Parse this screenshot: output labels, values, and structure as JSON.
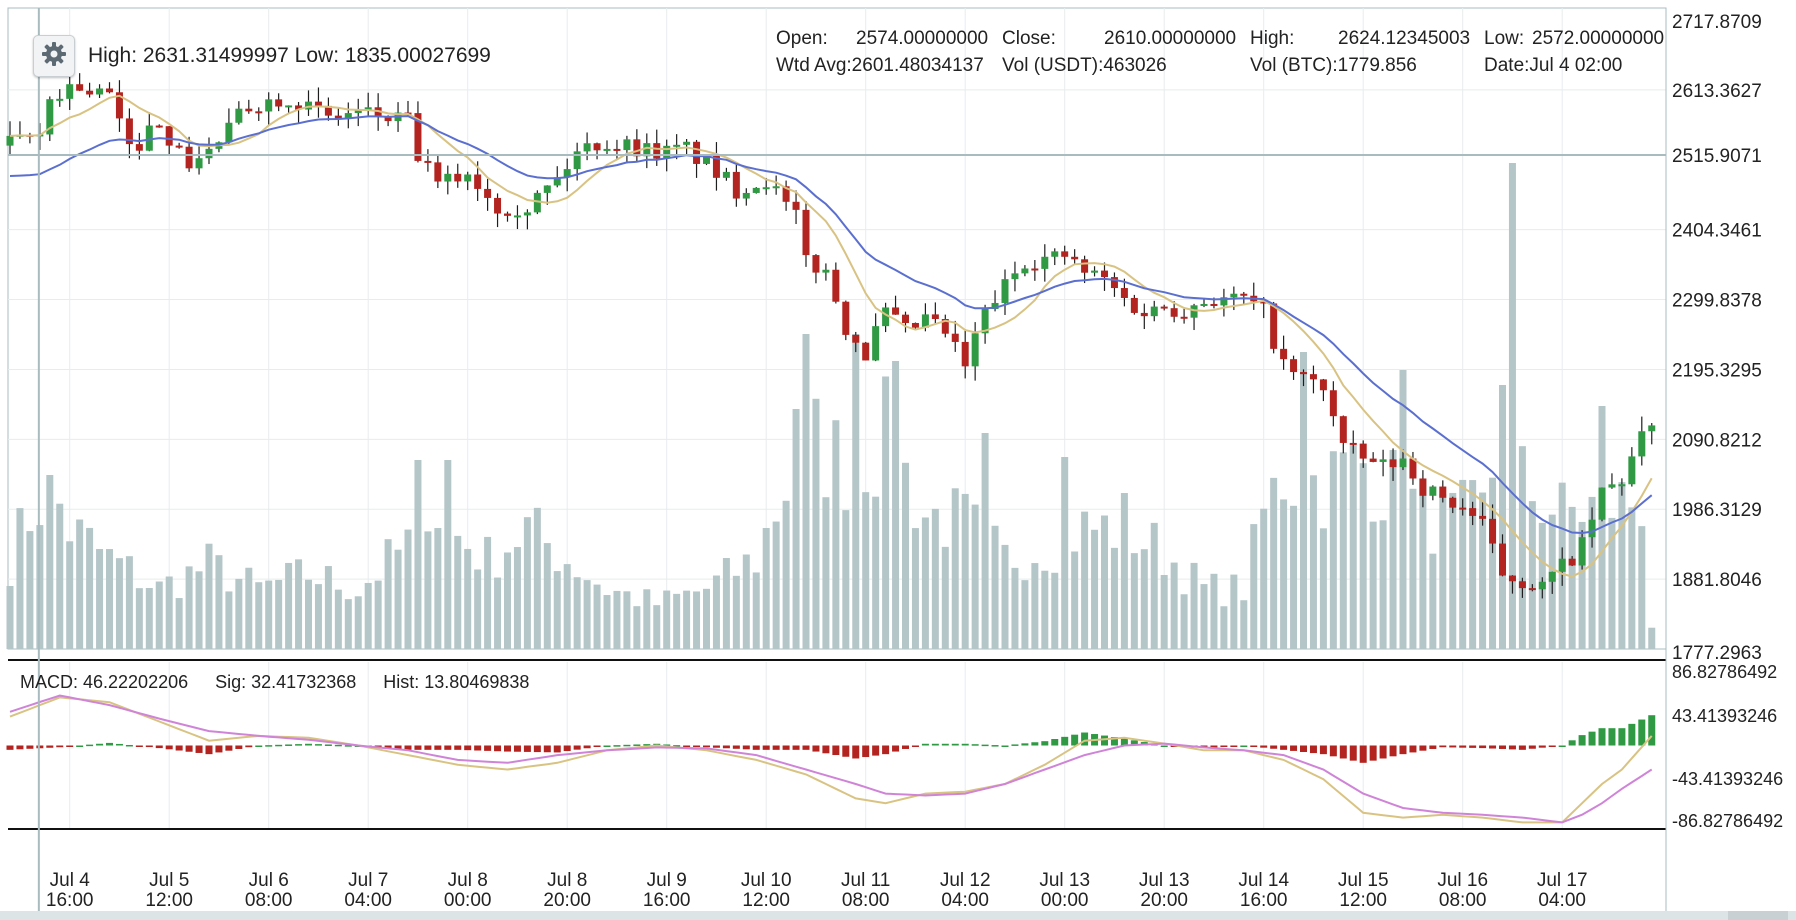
{
  "header": {
    "high_low": "High: 2631.31499997   Low: 1835.00027699",
    "open_label": "Open:",
    "open_value": "2574.00000000",
    "close_label": "Close:",
    "close_value": "2610.00000000",
    "high_label": "High:",
    "high_value": "2624.12345003",
    "low_label": "Low:",
    "low_value": "2572.00000000",
    "wtd_avg": "Wtd Avg:2601.48034137",
    "vol_usdt": "Vol (USDT):463026",
    "vol_btc": "Vol (BTC):1779.856",
    "date": "Date:Jul 4 02:00",
    "settings_icon": "gear-icon"
  },
  "macd_info": {
    "macd": "MACD:  46.22202206",
    "sig": "Sig: 32.41732368",
    "hist": "Hist:  13.80469838"
  },
  "colors": {
    "up": "#2f9a43",
    "down": "#b3231f",
    "volume": "#b5c6c9",
    "ma_fast": "#d9c383",
    "ma_slow": "#5a6fd0",
    "macd_line": "#d9c383",
    "signal_line": "#cf84d8",
    "grid": "#e8eced",
    "crosshair": "#a8bcc0"
  },
  "chart_data": {
    "type": "candlestick",
    "title": "",
    "price_axis": {
      "ylim": [
        1777.2963,
        2717.8709
      ],
      "tick_labels": [
        "2717.8709",
        "2613.3627",
        "2515.9071",
        "2404.3461",
        "2299.8378",
        "2195.3295",
        "2090.8212",
        "1986.3129",
        "1881.8046",
        "1777.2963"
      ]
    },
    "macd_axis": {
      "ylim": [
        -86.82786492,
        86.82786492
      ],
      "tick_labels": [
        "86.82786492",
        "43.41393246",
        "-43.41393246",
        "-86.82786492"
      ]
    },
    "x_axis": {
      "tick_labels": [
        [
          "Jul 4",
          "16:00"
        ],
        [
          "Jul 5",
          "12:00"
        ],
        [
          "Jul 6",
          "08:00"
        ],
        [
          "Jul 7",
          "04:00"
        ],
        [
          "Jul 8",
          "00:00"
        ],
        [
          "Jul 8",
          "20:00"
        ],
        [
          "Jul 9",
          "16:00"
        ],
        [
          "Jul 10",
          "12:00"
        ],
        [
          "Jul 11",
          "08:00"
        ],
        [
          "Jul 12",
          "04:00"
        ],
        [
          "Jul 13",
          "00:00"
        ],
        [
          "Jul 13",
          "20:00"
        ],
        [
          "Jul 14",
          "16:00"
        ],
        [
          "Jul 15",
          "12:00"
        ],
        [
          "Jul 16",
          "08:00"
        ],
        [
          "Jul 17",
          "04:00"
        ]
      ],
      "tick_positions": [
        6,
        16,
        26,
        36,
        46,
        56,
        66,
        76,
        86,
        96,
        106,
        116,
        126,
        136,
        146,
        156
      ],
      "bar_count": 166
    },
    "crosshair": {
      "bar": 3,
      "price": 2515.9071
    },
    "price_keys": [
      [
        0,
        2530
      ],
      [
        3,
        2545
      ],
      [
        4,
        2600
      ],
      [
        6,
        2620
      ],
      [
        10,
        2605
      ],
      [
        12,
        2520
      ],
      [
        15,
        2570
      ],
      [
        17,
        2515
      ],
      [
        18,
        2505
      ],
      [
        20,
        2520
      ],
      [
        24,
        2590
      ],
      [
        28,
        2605
      ],
      [
        32,
        2570
      ],
      [
        35,
        2580
      ],
      [
        40,
        2565
      ],
      [
        41,
        2515
      ],
      [
        43,
        2470
      ],
      [
        46,
        2490
      ],
      [
        49,
        2440
      ],
      [
        52,
        2440
      ],
      [
        55,
        2480
      ],
      [
        57,
        2520
      ],
      [
        59,
        2535
      ],
      [
        62,
        2530
      ],
      [
        66,
        2520
      ],
      [
        68,
        2525
      ],
      [
        73,
        2465
      ],
      [
        76,
        2480
      ],
      [
        79,
        2420
      ],
      [
        80,
        2360
      ],
      [
        82,
        2340
      ],
      [
        84,
        2260
      ],
      [
        86,
        2220
      ],
      [
        88,
        2280
      ],
      [
        90,
        2250
      ],
      [
        92,
        2270
      ],
      [
        94,
        2250
      ],
      [
        96,
        2200
      ],
      [
        98,
        2280
      ],
      [
        100,
        2320
      ],
      [
        102,
        2360
      ],
      [
        104,
        2360
      ],
      [
        106,
        2365
      ],
      [
        108,
        2340
      ],
      [
        110,
        2330
      ],
      [
        112,
        2300
      ],
      [
        114,
        2280
      ],
      [
        116,
        2290
      ],
      [
        118,
        2285
      ],
      [
        120,
        2300
      ],
      [
        124,
        2300
      ],
      [
        126,
        2280
      ],
      [
        128,
        2200
      ],
      [
        130,
        2180
      ],
      [
        132,
        2170
      ],
      [
        134,
        2080
      ],
      [
        136,
        2060
      ],
      [
        138,
        2050
      ],
      [
        140,
        2060
      ],
      [
        142,
        2020
      ],
      [
        144,
        2000
      ],
      [
        146,
        1990
      ],
      [
        148,
        1960
      ],
      [
        150,
        1890
      ],
      [
        152,
        1880
      ],
      [
        154,
        1870
      ],
      [
        156,
        1900
      ],
      [
        158,
        1930
      ],
      [
        160,
        2010
      ],
      [
        162,
        2030
      ],
      [
        164,
        2090
      ],
      [
        165,
        2105
      ]
    ],
    "volume_keys": [
      [
        0,
        0.3
      ],
      [
        2,
        0.45
      ],
      [
        4,
        0.55
      ],
      [
        6,
        0.4
      ],
      [
        10,
        0.3
      ],
      [
        15,
        0.2
      ],
      [
        20,
        0.28
      ],
      [
        25,
        0.2
      ],
      [
        30,
        0.25
      ],
      [
        35,
        0.2
      ],
      [
        40,
        0.35
      ],
      [
        41,
        0.6
      ],
      [
        44,
        0.4
      ],
      [
        48,
        0.3
      ],
      [
        52,
        0.4
      ],
      [
        56,
        0.3
      ],
      [
        60,
        0.2
      ],
      [
        65,
        0.15
      ],
      [
        70,
        0.2
      ],
      [
        75,
        0.3
      ],
      [
        78,
        0.55
      ],
      [
        80,
        0.7
      ],
      [
        84,
        0.62
      ],
      [
        88,
        0.7
      ],
      [
        92,
        0.45
      ],
      [
        96,
        0.42
      ],
      [
        100,
        0.3
      ],
      [
        104,
        0.35
      ],
      [
        108,
        0.4
      ],
      [
        112,
        0.4
      ],
      [
        116,
        0.32
      ],
      [
        120,
        0.2
      ],
      [
        124,
        0.2
      ],
      [
        126,
        0.45
      ],
      [
        128,
        0.58
      ],
      [
        132,
        0.55
      ],
      [
        136,
        0.62
      ],
      [
        140,
        0.5
      ],
      [
        144,
        0.42
      ],
      [
        148,
        0.45
      ],
      [
        150,
        0.75
      ],
      [
        152,
        0.55
      ],
      [
        156,
        0.45
      ],
      [
        160,
        0.48
      ],
      [
        164,
        0.5
      ],
      [
        165,
        0.08
      ]
    ],
    "volume_spikes": [
      [
        4,
        0.58
      ],
      [
        41,
        0.63
      ],
      [
        44,
        0.63
      ],
      [
        79,
        0.8
      ],
      [
        80,
        1.05
      ],
      [
        85,
        1.05
      ],
      [
        89,
        0.96
      ],
      [
        98,
        0.72
      ],
      [
        106,
        0.64
      ],
      [
        112,
        0.52
      ],
      [
        130,
        0.99
      ],
      [
        140,
        0.93
      ],
      [
        151,
        1.62
      ],
      [
        150,
        0.88
      ],
      [
        160,
        0.81
      ]
    ],
    "macd_keys": [
      [
        0,
        30
      ],
      [
        5,
        50
      ],
      [
        10,
        45
      ],
      [
        15,
        25
      ],
      [
        20,
        5
      ],
      [
        25,
        10
      ],
      [
        30,
        8
      ],
      [
        35,
        0
      ],
      [
        40,
        -10
      ],
      [
        45,
        -20
      ],
      [
        50,
        -25
      ],
      [
        55,
        -18
      ],
      [
        60,
        -5
      ],
      [
        65,
        0
      ],
      [
        70,
        -5
      ],
      [
        75,
        -15
      ],
      [
        80,
        -30
      ],
      [
        85,
        -55
      ],
      [
        88,
        -60
      ],
      [
        92,
        -50
      ],
      [
        96,
        -48
      ],
      [
        100,
        -40
      ],
      [
        104,
        -20
      ],
      [
        108,
        5
      ],
      [
        112,
        8
      ],
      [
        116,
        2
      ],
      [
        120,
        -5
      ],
      [
        124,
        -5
      ],
      [
        128,
        -15
      ],
      [
        132,
        -35
      ],
      [
        136,
        -70
      ],
      [
        140,
        -75
      ],
      [
        144,
        -72
      ],
      [
        148,
        -75
      ],
      [
        152,
        -80
      ],
      [
        156,
        -80
      ],
      [
        158,
        -60
      ],
      [
        160,
        -40
      ],
      [
        162,
        -25
      ],
      [
        165,
        10
      ]
    ],
    "signal_keys": [
      [
        0,
        35
      ],
      [
        5,
        52
      ],
      [
        10,
        42
      ],
      [
        15,
        28
      ],
      [
        20,
        15
      ],
      [
        25,
        10
      ],
      [
        30,
        6
      ],
      [
        35,
        0
      ],
      [
        40,
        -5
      ],
      [
        45,
        -15
      ],
      [
        50,
        -18
      ],
      [
        55,
        -10
      ],
      [
        60,
        -5
      ],
      [
        65,
        -2
      ],
      [
        70,
        -3
      ],
      [
        75,
        -10
      ],
      [
        80,
        -25
      ],
      [
        85,
        -40
      ],
      [
        88,
        -50
      ],
      [
        92,
        -52
      ],
      [
        96,
        -50
      ],
      [
        100,
        -40
      ],
      [
        104,
        -25
      ],
      [
        108,
        -10
      ],
      [
        112,
        0
      ],
      [
        116,
        2
      ],
      [
        120,
        -2
      ],
      [
        124,
        -5
      ],
      [
        128,
        -10
      ],
      [
        132,
        -25
      ],
      [
        136,
        -50
      ],
      [
        140,
        -65
      ],
      [
        144,
        -70
      ],
      [
        148,
        -72
      ],
      [
        152,
        -75
      ],
      [
        156,
        -80
      ],
      [
        158,
        -72
      ],
      [
        160,
        -60
      ],
      [
        162,
        -45
      ],
      [
        165,
        -25
      ]
    ]
  }
}
